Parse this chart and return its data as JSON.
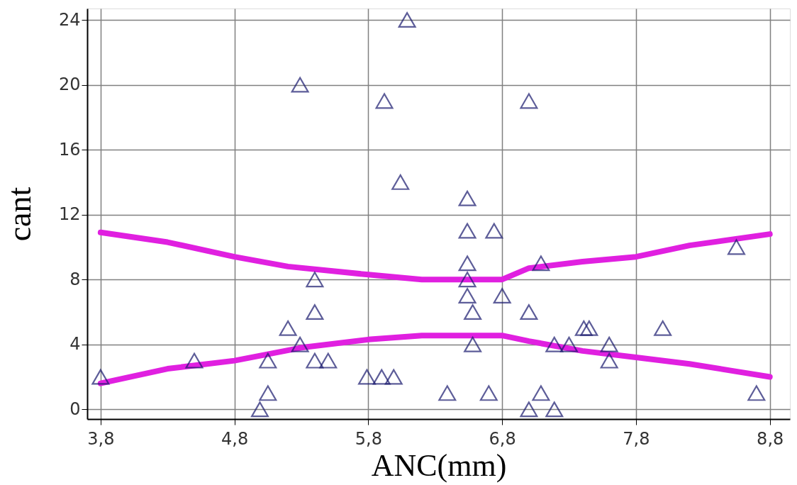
{
  "chart_data": {
    "type": "scatter",
    "xlabel": "ANC(mm)",
    "ylabel": "cant",
    "xlim": [
      3.7,
      8.95
    ],
    "ylim": [
      -0.6,
      24.7
    ],
    "xticks": [
      {
        "value": 3.8,
        "label": "3,8"
      },
      {
        "value": 4.8,
        "label": "4,8"
      },
      {
        "value": 5.8,
        "label": "5,8"
      },
      {
        "value": 6.8,
        "label": "6,8"
      },
      {
        "value": 7.8,
        "label": "7,8"
      },
      {
        "value": 8.8,
        "label": "8,8"
      }
    ],
    "yticks": [
      0,
      4,
      8,
      12,
      16,
      20,
      24
    ],
    "grid": true,
    "legend": false,
    "marker": "triangle",
    "series": [
      {
        "type": "scatter",
        "color": "#1a1a6e",
        "x": [
          3.8,
          4.5,
          4.99,
          5.05,
          5.05,
          5.2,
          5.29,
          5.29,
          5.4,
          5.4,
          5.4,
          5.5,
          5.79,
          5.9,
          5.99,
          6.04,
          6.09,
          5.92,
          6.39,
          6.54,
          6.54,
          6.54,
          6.54,
          6.54,
          6.58,
          6.58,
          6.74,
          6.8,
          7.0,
          7.0,
          6.7,
          7.09,
          7.09,
          7.0,
          7.19,
          7.41,
          7.45,
          7.19,
          7.3,
          7.6,
          7.6,
          8.0,
          8.55,
          8.7
        ],
        "values": [
          2,
          3,
          0,
          1,
          3,
          5,
          4,
          20,
          8,
          6,
          3,
          3,
          2,
          2,
          2,
          14,
          24,
          19,
          1,
          13,
          11,
          9,
          8,
          7,
          6,
          4,
          11,
          7,
          6,
          19,
          1,
          9,
          1,
          0,
          0,
          5,
          5,
          4,
          4,
          4,
          3,
          5,
          10,
          1
        ]
      },
      {
        "type": "line",
        "color": "#e020e0",
        "line_style": "solid",
        "marker": "none",
        "x": [
          3.8,
          4.3,
          4.8,
          5.2,
          5.8,
          6.2,
          6.8,
          7.0,
          7.4,
          7.8,
          8.2,
          8.8
        ],
        "values": [
          10.9,
          10.3,
          9.4,
          8.8,
          8.3,
          8.0,
          8.0,
          8.7,
          9.1,
          9.4,
          10.1,
          10.8
        ]
      },
      {
        "type": "line",
        "color": "#e020e0",
        "line_style": "solid",
        "marker": "none",
        "x": [
          3.8,
          4.3,
          4.8,
          5.3,
          5.8,
          6.2,
          6.8,
          7.0,
          7.4,
          7.8,
          8.2,
          8.5,
          8.8
        ],
        "values": [
          1.6,
          2.5,
          3.0,
          3.8,
          4.3,
          4.55,
          4.55,
          4.2,
          3.6,
          3.2,
          2.8,
          2.4,
          2.0
        ]
      }
    ]
  }
}
